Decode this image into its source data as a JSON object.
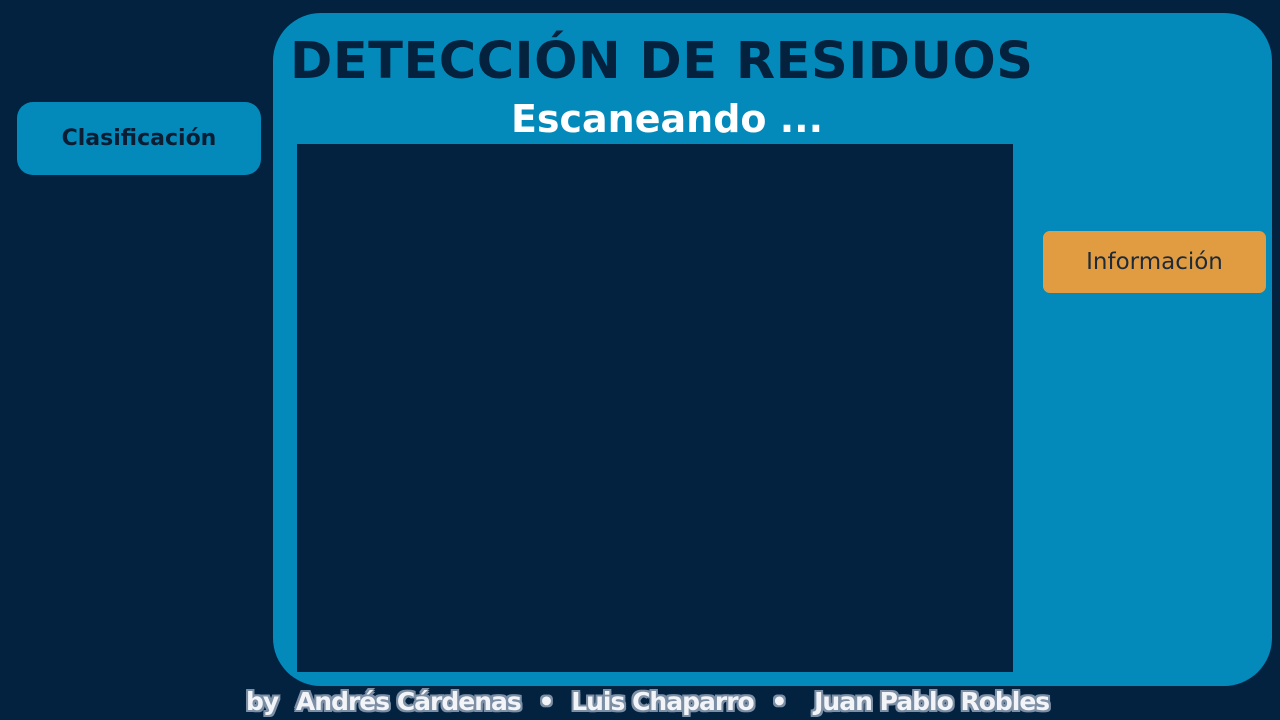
{
  "app": {
    "title": "DETECCIÓN DE RESIDUOS",
    "status": "Escaneando ..."
  },
  "sidebar": {
    "classification_label": "Clasificación"
  },
  "actions": {
    "info_label": "Información"
  },
  "credits": {
    "prefix": "by",
    "authors": [
      "Andrés Cárdenas",
      "Luis Chaparro",
      "Juan Pablo Robles"
    ],
    "separator": "•"
  },
  "colors": {
    "background": "#022240",
    "panel": "#038abb",
    "info_button": "#e19c41",
    "title_text": "#04213d",
    "status_text": "#ffffff"
  },
  "camera_feed": {
    "state": "empty"
  }
}
